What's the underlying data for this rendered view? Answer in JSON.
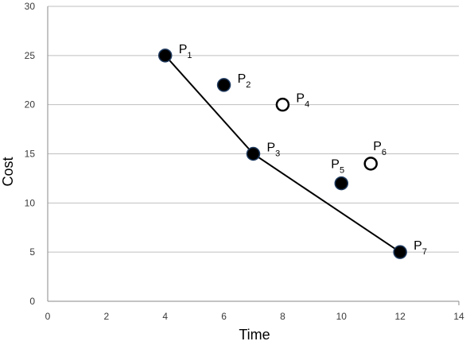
{
  "chart_data": {
    "type": "scatter",
    "title": "",
    "xlabel": "Time",
    "ylabel": "Cost",
    "xlim": [
      0,
      14
    ],
    "ylim": [
      0,
      30
    ],
    "xticks": [
      0,
      2,
      4,
      6,
      8,
      10,
      12,
      14
    ],
    "yticks": [
      0,
      5,
      10,
      15,
      20,
      25,
      30
    ],
    "grid": {
      "horizontal": true,
      "vertical": false
    },
    "colors": {
      "grid": "#bfbfbf",
      "axis": "#888888",
      "filled_point": "#000000",
      "point_edge": "#1f3a5f",
      "open_point_fill": "#ffffff",
      "line": "#000000"
    },
    "points": [
      {
        "label": "P",
        "sub": "1",
        "x": 4,
        "y": 25,
        "style": "filled"
      },
      {
        "label": "P",
        "sub": "2",
        "x": 6,
        "y": 22,
        "style": "filled"
      },
      {
        "label": "P",
        "sub": "3",
        "x": 7,
        "y": 15,
        "style": "filled"
      },
      {
        "label": "P",
        "sub": "4",
        "x": 8,
        "y": 20,
        "style": "open"
      },
      {
        "label": "P",
        "sub": "5",
        "x": 10,
        "y": 12,
        "style": "filled"
      },
      {
        "label": "P",
        "sub": "6",
        "x": 11,
        "y": 14,
        "style": "open"
      },
      {
        "label": "P",
        "sub": "7",
        "x": 12,
        "y": 5,
        "style": "filled"
      }
    ],
    "frontier_line": {
      "points": [
        [
          4,
          25
        ],
        [
          7,
          15
        ],
        [
          12,
          5
        ]
      ]
    }
  }
}
